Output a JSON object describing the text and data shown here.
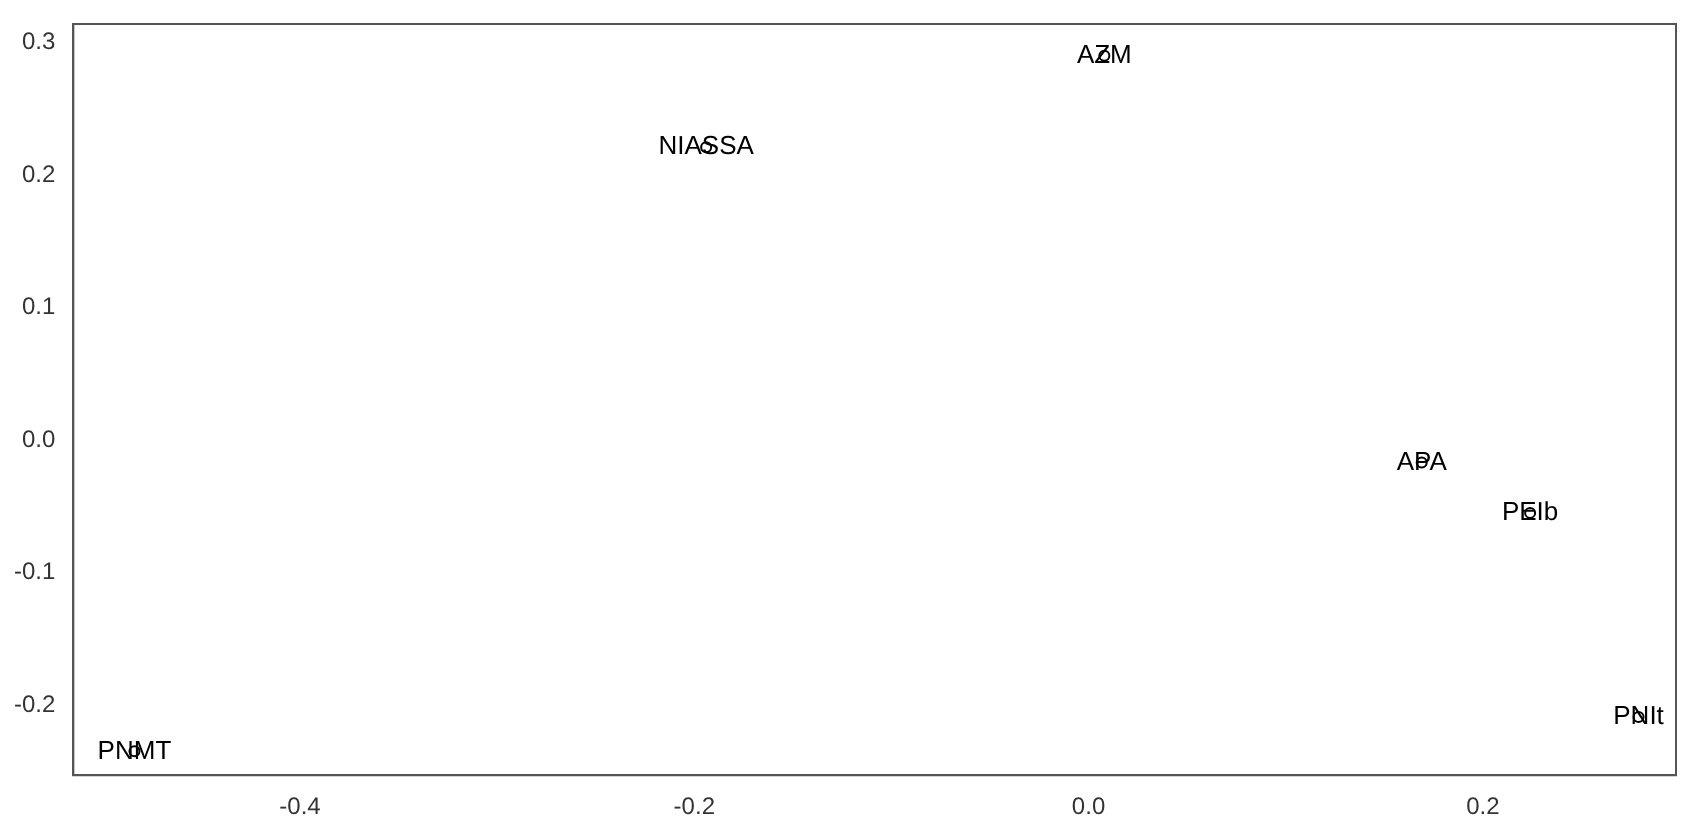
{
  "chart_data": {
    "type": "scatter",
    "marker": "circle",
    "grid": false,
    "legend": false,
    "x": [
      0.008,
      -0.194,
      0.169,
      0.224,
      0.279,
      -0.484
    ],
    "values": [
      0.29,
      0.221,
      -0.017,
      -0.055,
      -0.209,
      -0.235
    ],
    "value_labels": [
      "AZM",
      "NIASSA",
      "APA",
      "PEIb",
      "PNIt",
      "PNMT"
    ],
    "color": "#000000",
    "xlim": [
      -0.515,
      0.298
    ],
    "xticks": [
      -0.4,
      -0.2,
      {
        "value": 0,
        "label": "0.0"
      },
      0.2
    ],
    "ylim": [
      -0.253,
      0.314
    ],
    "yticks": [
      -0.2,
      -0.1,
      {
        "value": 0,
        "label": "0.0"
      },
      0.1,
      0.2,
      0.3
    ]
  }
}
